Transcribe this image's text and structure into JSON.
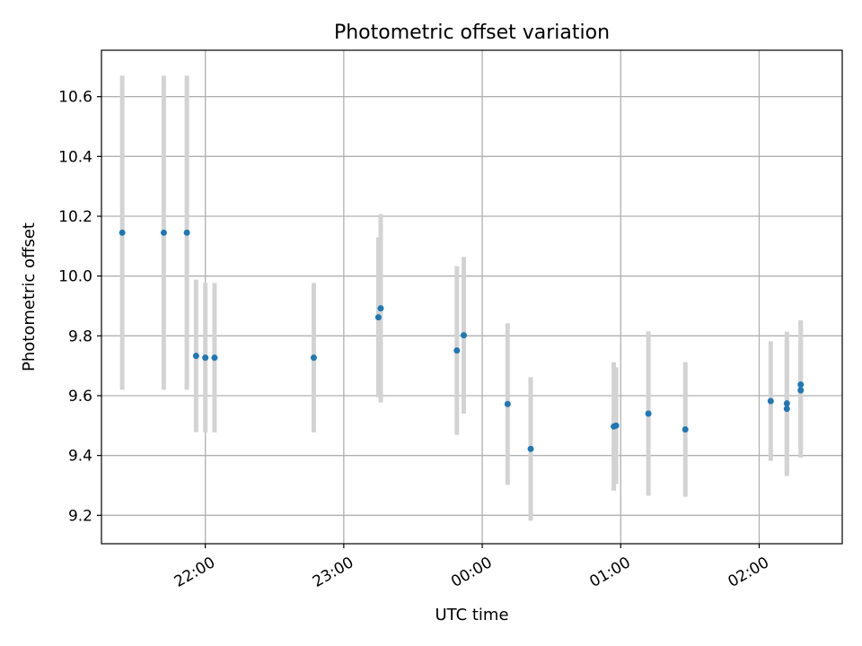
{
  "chart_data": {
    "type": "scatter",
    "title": "Photometric offset variation",
    "xlabel": "UTC time",
    "ylabel": "Photometric offset",
    "x_axis_kind": "time",
    "xlim": [
      "21:15",
      "02:36"
    ],
    "ylim": [
      9.105,
      10.755
    ],
    "xticks": [
      "22:00",
      "23:00",
      "00:00",
      "01:00",
      "02:00"
    ],
    "yticks": [
      9.2,
      9.4,
      9.6,
      9.8,
      10.0,
      10.2,
      10.4,
      10.6
    ],
    "ytick_labels": [
      "9.2",
      "9.4",
      "9.6",
      "9.8",
      "10.0",
      "10.2",
      "10.4",
      "10.6"
    ],
    "grid": true,
    "marker_color": "#1f77b4",
    "errorbar_color": "#d3d3d3",
    "series": [
      {
        "points": [
          {
            "t": "21:24",
            "y": 10.145,
            "err": 0.525
          },
          {
            "t": "21:42",
            "y": 10.145,
            "err": 0.525
          },
          {
            "t": "21:52",
            "y": 10.145,
            "err": 0.525
          },
          {
            "t": "21:56",
            "y": 9.733,
            "err": 0.255
          },
          {
            "t": "22:00",
            "y": 9.727,
            "err": 0.25
          },
          {
            "t": "22:04",
            "y": 9.727,
            "err": 0.25
          },
          {
            "t": "22:47",
            "y": 9.727,
            "err": 0.25
          },
          {
            "t": "23:15",
            "y": 9.862,
            "err": 0.267
          },
          {
            "t": "23:16",
            "y": 9.892,
            "err": 0.315
          },
          {
            "t": "23:49",
            "y": 9.751,
            "err": 0.282
          },
          {
            "t": "23:52",
            "y": 9.802,
            "err": 0.262
          },
          {
            "t": "00:11",
            "y": 9.572,
            "err": 0.27
          },
          {
            "t": "00:21",
            "y": 9.422,
            "err": 0.24
          },
          {
            "t": "00:57",
            "y": 9.497,
            "err": 0.215
          },
          {
            "t": "00:58",
            "y": 9.5,
            "err": 0.195
          },
          {
            "t": "01:12",
            "y": 9.54,
            "err": 0.275
          },
          {
            "t": "01:28",
            "y": 9.487,
            "err": 0.225
          },
          {
            "t": "02:05",
            "y": 9.582,
            "err": 0.2
          },
          {
            "t": "02:12",
            "y": 9.574,
            "err": 0.24
          },
          {
            "t": "02:12",
            "y": 9.556,
            "err": 0.225
          },
          {
            "t": "02:18",
            "y": 9.637,
            "err": 0.215
          },
          {
            "t": "02:18",
            "y": 9.618,
            "err": 0.225
          }
        ]
      }
    ]
  }
}
